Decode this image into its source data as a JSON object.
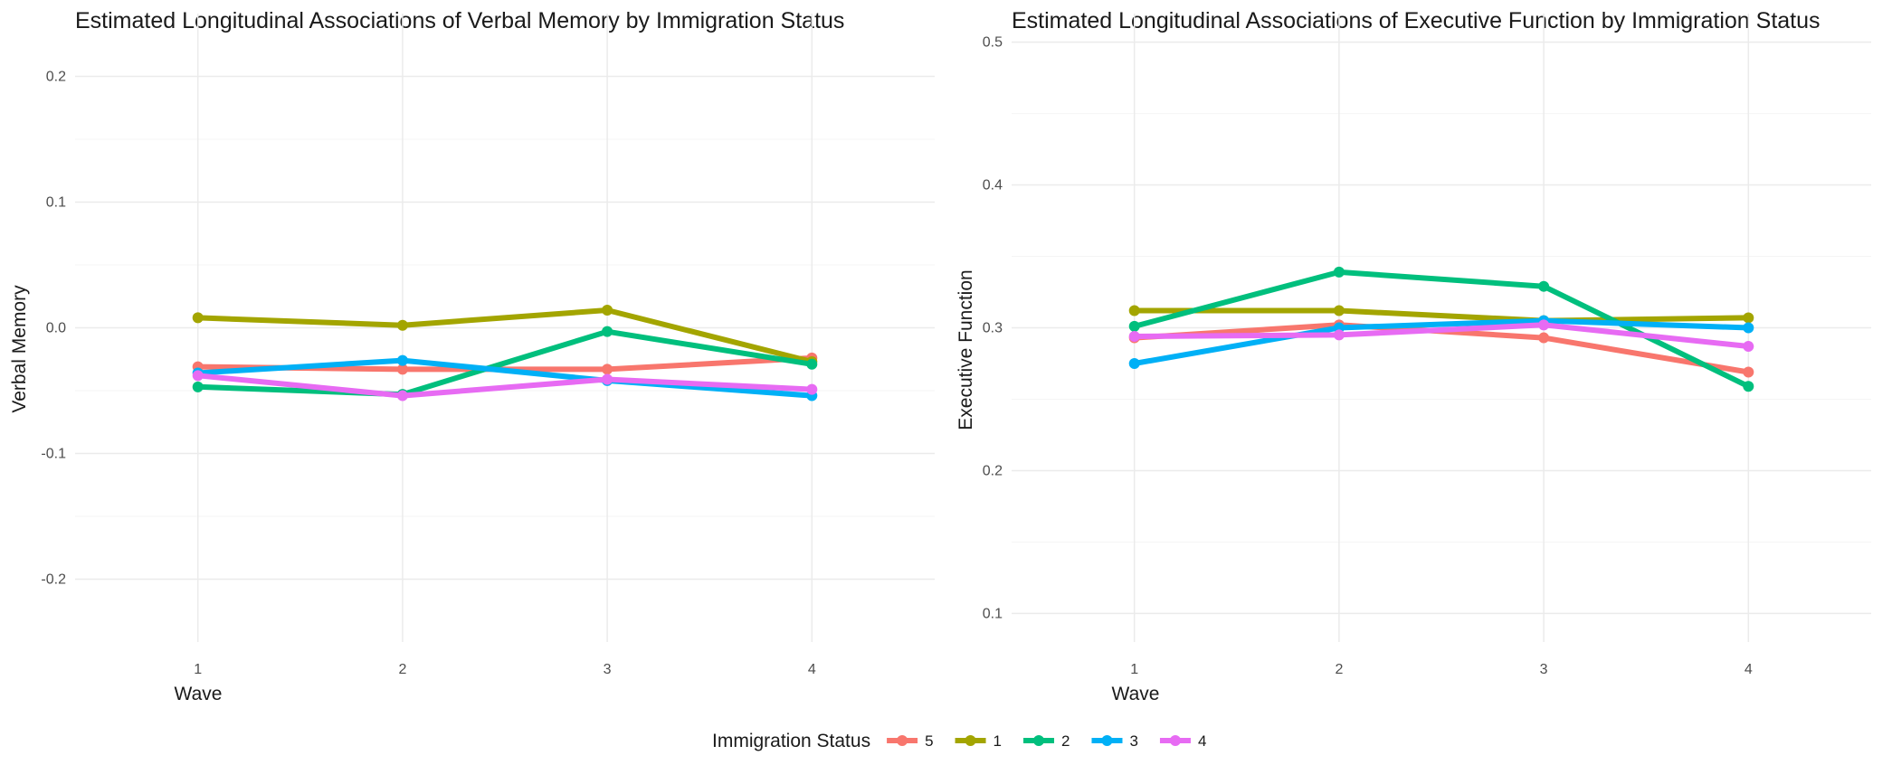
{
  "chart_data": [
    {
      "type": "line",
      "title": "Estimated Longitudinal Associations of Verbal Memory by Immigration Status",
      "xlabel": "Wave",
      "ylabel": "Verbal Memory",
      "x": [
        1,
        2,
        3,
        4
      ],
      "x_tick_labels": [
        "1",
        "2",
        "3",
        "4"
      ],
      "xlim": [
        0.4,
        4.6
      ],
      "ylim": [
        -0.25,
        0.25
      ],
      "y_ticks": [
        0.2,
        0.1,
        0.0,
        -0.1,
        -0.2
      ],
      "y_tick_labels": [
        "0.2",
        "0.1",
        "0.0",
        "-0.1",
        "-0.2"
      ],
      "grid": true,
      "series": [
        {
          "name": "5",
          "values": [
            -0.031,
            -0.033,
            -0.033,
            -0.024
          ]
        },
        {
          "name": "1",
          "values": [
            0.008,
            0.002,
            0.014,
            -0.027
          ]
        },
        {
          "name": "2",
          "values": [
            -0.047,
            -0.053,
            -0.003,
            -0.029
          ]
        },
        {
          "name": "3",
          "values": [
            -0.036,
            -0.026,
            -0.042,
            -0.054
          ]
        },
        {
          "name": "4",
          "values": [
            -0.038,
            -0.054,
            -0.041,
            -0.049
          ]
        }
      ]
    },
    {
      "type": "line",
      "title": "Estimated Longitudinal Associations of Executive Function by Immigration Status",
      "xlabel": "Wave",
      "ylabel": "Executive Function",
      "x": [
        1,
        2,
        3,
        4
      ],
      "x_tick_labels": [
        "1",
        "2",
        "3",
        "4"
      ],
      "xlim": [
        0.4,
        4.6
      ],
      "ylim": [
        0.08,
        0.52
      ],
      "y_ticks": [
        0.5,
        0.4,
        0.3,
        0.2,
        0.1
      ],
      "y_tick_labels": [
        "0.5",
        "0.4",
        "0.3",
        "0.2",
        "0.1"
      ],
      "grid": true,
      "series": [
        {
          "name": "5",
          "values": [
            0.293,
            0.302,
            0.293,
            0.269
          ]
        },
        {
          "name": "1",
          "values": [
            0.312,
            0.312,
            0.305,
            0.307
          ]
        },
        {
          "name": "2",
          "values": [
            0.301,
            0.339,
            0.329,
            0.259
          ]
        },
        {
          "name": "3",
          "values": [
            0.275,
            0.3,
            0.305,
            0.3
          ]
        },
        {
          "name": "4",
          "values": [
            0.294,
            0.295,
            0.302,
            0.287
          ]
        }
      ]
    }
  ],
  "legend": {
    "title": "Immigration Status",
    "position": "bottom",
    "items": [
      {
        "label": "5",
        "color": "#F8766D"
      },
      {
        "label": "1",
        "color": "#A3A500"
      },
      {
        "label": "2",
        "color": "#00BF7D"
      },
      {
        "label": "3",
        "color": "#00B0F6"
      },
      {
        "label": "4",
        "color": "#E76BF3"
      }
    ]
  },
  "colors": {
    "series": [
      "#F8766D",
      "#A3A500",
      "#00BF7D",
      "#00B0F6",
      "#E76BF3"
    ],
    "grid_major": "#ebebeb",
    "grid_minor": "#f5f5f5",
    "text": "#1a1a1a",
    "tick_text": "#4d4d4d"
  }
}
